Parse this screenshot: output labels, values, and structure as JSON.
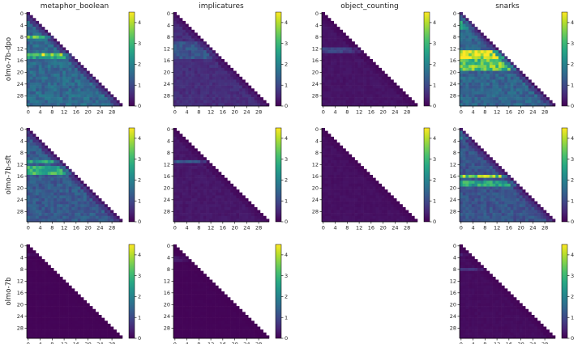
{
  "chart_data": {
    "type": "heatmap",
    "columns": [
      "metaphor_boolean",
      "implicatures",
      "object_counting",
      "snarks"
    ],
    "rows": [
      "olmo-7b-dpo",
      "olmo-7b-sft",
      "olmo-7b"
    ],
    "x_ticks": [
      "0",
      "4",
      "8",
      "12",
      "16",
      "20",
      "24",
      "28"
    ],
    "y_ticks": [
      "0",
      "4",
      "8",
      "12",
      "16",
      "20",
      "24",
      "28"
    ],
    "colorbar_ticks": [
      "0",
      "1",
      "2",
      "3",
      "4"
    ],
    "colorbar_range": [
      0,
      4.5
    ],
    "colormap": "viridis",
    "grid_size": 32,
    "empty_panels": [
      "olmo-7b/object_counting"
    ],
    "mask": "upper triangle (column index > row index)",
    "panels": [
      {
        "row": "olmo-7b-dpo",
        "column": "metaphor_boolean",
        "level": 1.6,
        "bands": [
          [
            8,
            9,
            3.2
          ],
          [
            15,
            16,
            2.6
          ],
          [
            14,
            15,
            3.8
          ]
        ]
      },
      {
        "row": "olmo-7b-dpo",
        "column": "implicatures",
        "level": 0.6,
        "bands": [
          [
            10,
            16,
            1.2
          ]
        ]
      },
      {
        "row": "olmo-7b-dpo",
        "column": "object_counting",
        "level": 0.25,
        "bands": [
          [
            12,
            14,
            0.9
          ]
        ]
      },
      {
        "row": "olmo-7b-dpo",
        "column": "snarks",
        "level": 1.5,
        "bands": [
          [
            0,
            6,
            2.6
          ],
          [
            13,
            17,
            4.3
          ],
          [
            16,
            20,
            3.4
          ]
        ]
      },
      {
        "row": "olmo-7b-sft",
        "column": "metaphor_boolean",
        "level": 1.3,
        "bands": [
          [
            11,
            12,
            2.6
          ],
          [
            13,
            16,
            2.9
          ]
        ]
      },
      {
        "row": "olmo-7b-sft",
        "column": "implicatures",
        "level": 0.3,
        "bands": [
          [
            11,
            12,
            1.3
          ]
        ]
      },
      {
        "row": "olmo-7b-sft",
        "column": "object_counting",
        "level": 0.2,
        "bands": []
      },
      {
        "row": "olmo-7b-sft",
        "column": "snarks",
        "level": 1.2,
        "bands": [
          [
            0,
            4,
            2.4
          ],
          [
            16,
            17,
            3.6
          ],
          [
            18,
            20,
            2.7
          ]
        ]
      },
      {
        "row": "olmo-7b",
        "column": "metaphor_boolean",
        "level": 0.05,
        "bands": [
          [
            3,
            4,
            0.3
          ]
        ]
      },
      {
        "row": "olmo-7b",
        "column": "implicatures",
        "level": 0.05,
        "bands": [
          [
            4,
            6,
            0.3
          ]
        ]
      },
      {
        "row": "olmo-7b",
        "column": "snarks",
        "level": 0.15,
        "bands": [
          [
            3,
            4,
            0.5
          ],
          [
            8,
            9,
            0.6
          ]
        ]
      }
    ]
  }
}
